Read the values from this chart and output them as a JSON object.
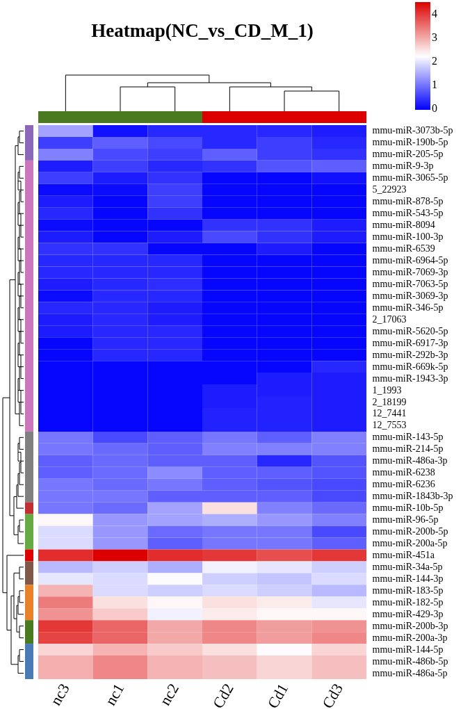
{
  "chart_data": {
    "type": "heatmap",
    "title": "Heatmap(NC_vs_CD_M_1)",
    "categories": [
      "nc3",
      "nc1",
      "nc2",
      "Cd2",
      "Cd1",
      "Cd3"
    ],
    "y_categories": [
      "mmu-miR-3073b-5p",
      "mmu-miR-190b-5p",
      "mmu-miR-205-5p",
      "mmu-miR-9-3p",
      "mmu-miR-3065-5p",
      "5_22923",
      "mmu-miR-878-5p",
      "mmu-miR-543-5p",
      "mmu-miR-8094",
      "mmu-miR-100-3p",
      "mmu-miR-6539",
      "mmu-miR-6964-5p",
      "mmu-miR-7069-3p",
      "mmu-miR-7063-5p",
      "mmu-miR-3069-3p",
      "mmu-miR-346-5p",
      "2_17063",
      "mmu-miR-5620-5p",
      "mmu-miR-6917-3p",
      "mmu-miR-292b-3p",
      "mmu-miR-669k-5p",
      "mmu-miR-1943-3p",
      "1_1993",
      "2_18199",
      "12_7441",
      "12_7553",
      "mmu-miR-143-5p",
      "mmu-miR-214-5p",
      "mmu-miR-486a-3p",
      "mmu-miR-6238",
      "mmu-miR-6236",
      "mmu-miR-1843b-3p",
      "mmu-miR-10b-5p",
      "mmu-miR-96-5p",
      "mmu-miR-200b-5p",
      "mmu-miR-200a-5p",
      "mmu-miR-451a",
      "mmu-miR-34a-5p",
      "mmu-miR-144-3p",
      "mmu-miR-183-5p",
      "mmu-miR-182-5p",
      "mmu-miR-429-3p",
      "mmu-miR-200b-3p",
      "mmu-miR-200a-3p",
      "mmu-miR-144-5p",
      "mmu-miR-486b-5p",
      "mmu-miR-486a-5p"
    ],
    "cells": [
      [
        1.4,
        0.1,
        0.3,
        0.3,
        0.3,
        0.2
      ],
      [
        0.5,
        0.8,
        0.6,
        0.3,
        0.5,
        0.3
      ],
      [
        1.1,
        0.6,
        0.5,
        0.8,
        0.5,
        0.4
      ],
      [
        0.2,
        0.5,
        0.3,
        0.4,
        0.7,
        0.8
      ],
      [
        0.5,
        0.2,
        0.4,
        0,
        0,
        0.1
      ],
      [
        0.05,
        0.05,
        0.5,
        0,
        0,
        0
      ],
      [
        0.2,
        0,
        0.5,
        0,
        0,
        0
      ],
      [
        0.3,
        0,
        0.4,
        0,
        0,
        0
      ],
      [
        0.05,
        0,
        0,
        0.4,
        0.4,
        0.2
      ],
      [
        0.2,
        0,
        0.2,
        0.6,
        0.4,
        0.2
      ],
      [
        0.4,
        0.4,
        0,
        0,
        0.2,
        0
      ],
      [
        0.3,
        0.3,
        0.3,
        0,
        0,
        0
      ],
      [
        0.3,
        0.3,
        0.3,
        0,
        0,
        0
      ],
      [
        0.2,
        0.3,
        0.35,
        0,
        0,
        0
      ],
      [
        0.05,
        0.3,
        0.3,
        0,
        0,
        0
      ],
      [
        0.3,
        0.3,
        0.2,
        0,
        0,
        0
      ],
      [
        0.2,
        0.3,
        0.2,
        0,
        0,
        0
      ],
      [
        0.2,
        0.3,
        0.3,
        0,
        0,
        0
      ],
      [
        0,
        0.3,
        0.3,
        0,
        0,
        0
      ],
      [
        0,
        0.3,
        0.3,
        0,
        0,
        0
      ],
      [
        0,
        0,
        0,
        0,
        0,
        0.3
      ],
      [
        0,
        0,
        0,
        0,
        0.2,
        0.2
      ],
      [
        0,
        0,
        0,
        0.2,
        0.2,
        0.2
      ],
      [
        0,
        0,
        0,
        0.2,
        0.25,
        0.2
      ],
      [
        0,
        0,
        0,
        0.25,
        0.25,
        0.2
      ],
      [
        0,
        0,
        0,
        0.25,
        0.25,
        0.2
      ],
      [
        1.0,
        0.6,
        0.8,
        1.0,
        0.8,
        1.1
      ],
      [
        1.0,
        0.9,
        0.8,
        1.1,
        1.1,
        1.1
      ],
      [
        0.8,
        0.9,
        0.8,
        0.8,
        0.3,
        0.7
      ],
      [
        0.8,
        0.9,
        1.2,
        0.8,
        0.8,
        0.7
      ],
      [
        1.0,
        0.9,
        1.0,
        0.8,
        0.7,
        0.6
      ],
      [
        1.0,
        1.0,
        0.8,
        0.8,
        0.8,
        0.6
      ],
      [
        1.0,
        0.9,
        1.4,
        2.5,
        1.1,
        0.9
      ],
      [
        2.3,
        1.3,
        1.4,
        1.5,
        1.3,
        1.1
      ],
      [
        1.9,
        1.3,
        0.9,
        1.0,
        1.0,
        0.6
      ],
      [
        1.9,
        1.3,
        0.8,
        1.0,
        1.0,
        0.8
      ],
      [
        4.1,
        4.5,
        4.1,
        4.0,
        3.8,
        4.0
      ],
      [
        1.6,
        1.8,
        1.5,
        2.1,
        2.0,
        1.8
      ],
      [
        2.0,
        1.9,
        2.2,
        1.8,
        1.7,
        1.9
      ],
      [
        2.9,
        1.9,
        1.8,
        1.9,
        1.8,
        1.6
      ],
      [
        3.4,
        2.5,
        2.3,
        2.5,
        2.4,
        2.0
      ],
      [
        3.2,
        2.7,
        2.1,
        2.4,
        2.3,
        2.3
      ],
      [
        4.0,
        3.6,
        3.0,
        3.3,
        3.1,
        3.2
      ],
      [
        3.9,
        3.6,
        3.0,
        3.3,
        3.1,
        3.3
      ],
      [
        2.6,
        2.9,
        2.7,
        2.5,
        2.2,
        2.6
      ],
      [
        2.95,
        3.3,
        2.9,
        2.8,
        2.6,
        2.8
      ],
      [
        2.95,
        3.3,
        2.9,
        2.8,
        2.6,
        2.8
      ]
    ],
    "clim": [
      -0.05,
      4.5
    ],
    "cticks": [
      0,
      1,
      2,
      3,
      4
    ]
  }
}
